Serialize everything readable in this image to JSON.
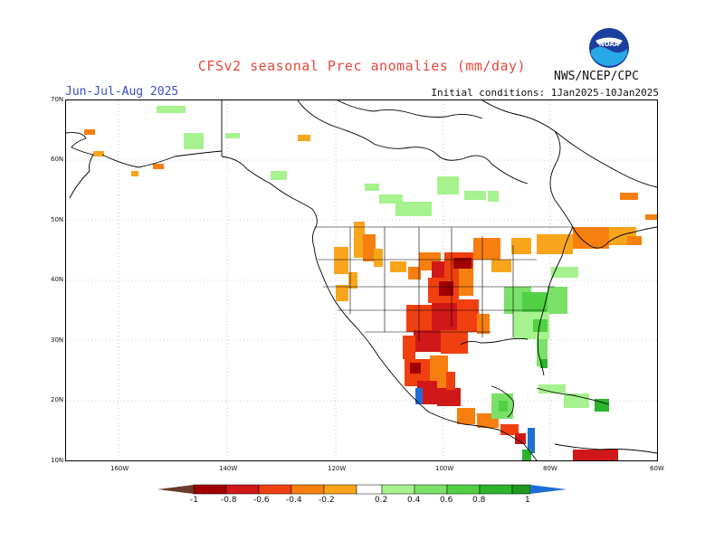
{
  "header": {
    "title": "CFSv2 seasonal Prec anomalies (mm/day)",
    "season": "Jun-Jul-Aug 2025",
    "initial_conditions": "Initial conditions: 1Jan2025-10Jan2025",
    "agency": "NWS/NCEP/CPC",
    "logo_text": "NOAA"
  },
  "axes": {
    "lat_labels": [
      "70N",
      "60N",
      "50N",
      "40N",
      "30N",
      "20N",
      "10N"
    ],
    "lon_labels": [
      "160W",
      "140W",
      "120W",
      "100W",
      "80W",
      "60W"
    ]
  },
  "legend": {
    "labels": [
      "-1",
      "-0.8",
      "-0.6",
      "-0.4",
      "-0.2",
      "0.2",
      "0.4",
      "0.6",
      "0.8",
      "1"
    ],
    "colors": {
      "lt_minus1": "#6b3a2a",
      "minus1": "#a00000",
      "minus08": "#d01818",
      "minus06": "#f04010",
      "minus04": "#f77f10",
      "minus02": "#f9a51c",
      "neutral": "#ffffff",
      "plus02": "#a6f28f",
      "plus04": "#79e167",
      "plus06": "#4fd143",
      "plus08": "#2cb42c",
      "plus1": "#1e9a1e",
      "gt_plus1": "#1f6ed6"
    }
  }
}
